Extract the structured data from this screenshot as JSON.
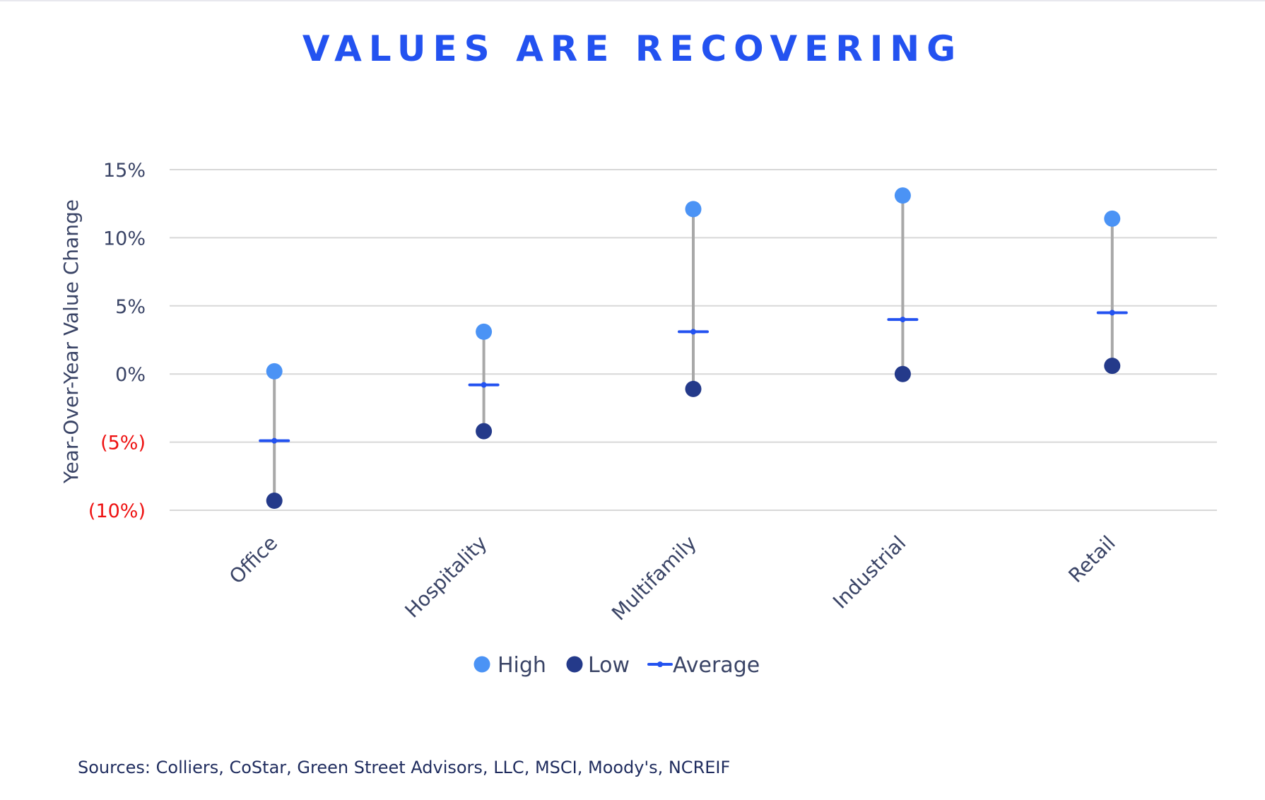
{
  "title": "VALUES ARE RECOVERING",
  "source": "Sources: Colliers, CoStar, Green Street Advisors, LLC, MSCI, Moody's, NCREIF",
  "colors": {
    "title": "#2352f0",
    "high": "#4b93f5",
    "low": "#243a8a",
    "average": "#2352f0",
    "whisker": "#a8a8a8",
    "grid": "#d8d8d8",
    "axis_text": "#3a4466",
    "negative_tick": "#ee1111"
  },
  "chart_data": {
    "type": "scatter",
    "title": "VALUES ARE RECOVERING",
    "xlabel": "",
    "ylabel": "Year-Over-Year Value Change",
    "ylim": [
      -10,
      15
    ],
    "yticks": [
      {
        "value": 15,
        "label": "15%",
        "negative": false
      },
      {
        "value": 10,
        "label": "10%",
        "negative": false
      },
      {
        "value": 5,
        "label": "5%",
        "negative": false
      },
      {
        "value": 0,
        "label": "0%",
        "negative": false
      },
      {
        "value": -5,
        "label": "(5%)",
        "negative": true
      },
      {
        "value": -10,
        "label": "(10%)",
        "negative": true
      }
    ],
    "categories": [
      "Office",
      "Hospitality",
      "Multifamily",
      "Industrial",
      "Retail"
    ],
    "series": [
      {
        "name": "High",
        "values": [
          0.2,
          3.1,
          12.1,
          13.1,
          11.4
        ]
      },
      {
        "name": "Low",
        "values": [
          -9.3,
          -4.2,
          -1.1,
          0.0,
          0.6
        ]
      },
      {
        "name": "Average",
        "values": [
          -4.9,
          -0.8,
          3.1,
          4.0,
          4.5
        ]
      }
    ],
    "legend": [
      "High",
      "Low",
      "Average"
    ],
    "grid": true,
    "legend_position": "bottom-center"
  }
}
